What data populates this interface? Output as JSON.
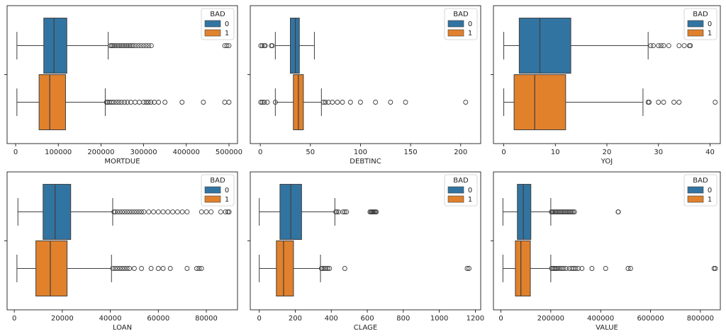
{
  "colors": {
    "bad0": "#3274a1",
    "bad1": "#e1812c",
    "frame": "#000000",
    "whisker": "#3f3f3f"
  },
  "legend": {
    "title": "BAD",
    "items": [
      "0",
      "1"
    ],
    "placement": "top-right"
  },
  "chart_data": [
    {
      "type": "box",
      "xlabel": "MORTDUE",
      "xlim": [
        -20000,
        520000
      ],
      "xticks": [
        0,
        100000,
        200000,
        300000,
        400000,
        500000
      ],
      "xtick_labels": [
        "0",
        "100000",
        "200000",
        "300000",
        "400000",
        "500000"
      ],
      "series": [
        {
          "name": "0",
          "whislo": 3000,
          "q1": 66000,
          "med": 90000,
          "q3": 120000,
          "whishi": 217000,
          "fliers": [
            222000,
            225000,
            228000,
            232000,
            236000,
            240000,
            244000,
            248000,
            252000,
            256000,
            260000,
            264000,
            268000,
            272000,
            276000,
            282000,
            288000,
            294000,
            300000,
            306000,
            312000,
            318000,
            490000,
            495000,
            500000
          ]
        },
        {
          "name": "1",
          "whislo": 3000,
          "q1": 55000,
          "med": 80000,
          "q3": 117000,
          "whishi": 210000,
          "fliers": [
            213000,
            216000,
            220000,
            225000,
            230000,
            236000,
            242000,
            248000,
            255000,
            262000,
            270000,
            280000,
            290000,
            300000,
            306000,
            311000,
            317000,
            325000,
            335000,
            350000,
            390000,
            440000,
            490000,
            500000
          ]
        }
      ]
    },
    {
      "type": "box",
      "xlabel": "DEBTINC",
      "xlim": [
        -10,
        220
      ],
      "xticks": [
        0,
        50,
        100,
        150,
        200
      ],
      "xtick_labels": [
        "0",
        "50",
        "100",
        "150",
        "200"
      ],
      "series": [
        {
          "name": "0",
          "whislo": 15,
          "q1": 30,
          "med": 35,
          "q3": 39,
          "whishi": 54,
          "fliers": [
            0.5,
            2,
            4,
            5,
            11,
            12
          ]
        },
        {
          "name": "1",
          "whislo": 15,
          "q1": 33,
          "med": 38,
          "q3": 43,
          "whishi": 61,
          "fliers": [
            0.5,
            2,
            4,
            7,
            15,
            63,
            65,
            68,
            72,
            77,
            82,
            90,
            100,
            115,
            130,
            145,
            205
          ]
        }
      ]
    },
    {
      "type": "box",
      "xlabel": "YOJ",
      "xlim": [
        -2,
        42
      ],
      "xticks": [
        0,
        10,
        20,
        30,
        40
      ],
      "xtick_labels": [
        "0",
        "10",
        "20",
        "30",
        "40"
      ],
      "series": [
        {
          "name": "0",
          "whislo": 0,
          "q1": 3,
          "med": 7,
          "q3": 13,
          "whishi": 28,
          "fliers": [
            28.5,
            29,
            30,
            30.5,
            31,
            32,
            34,
            35,
            36,
            36.2
          ]
        },
        {
          "name": "1",
          "whislo": 0,
          "q1": 2,
          "med": 6,
          "q3": 12,
          "whishi": 27,
          "fliers": [
            28,
            28.2,
            30,
            31,
            33,
            34,
            41
          ]
        }
      ]
    },
    {
      "type": "box",
      "xlabel": "LOAN",
      "xlim": [
        -3000,
        93000
      ],
      "xticks": [
        0,
        20000,
        40000,
        60000,
        80000
      ],
      "xtick_labels": [
        "0",
        "20000",
        "40000",
        "60000",
        "80000"
      ],
      "series": [
        {
          "name": "0",
          "whislo": 1500,
          "q1": 12000,
          "med": 17000,
          "q3": 23500,
          "whishi": 41000,
          "fliers": [
            41500,
            42000,
            43000,
            44000,
            45000,
            46000,
            47000,
            48000,
            49000,
            50000,
            51000,
            52000,
            53000,
            54000,
            56000,
            58000,
            60000,
            62000,
            64000,
            66000,
            68000,
            70000,
            72000,
            78000,
            80000,
            82000,
            86000,
            88000,
            89000,
            89500
          ]
        },
        {
          "name": "1",
          "whislo": 1100,
          "q1": 9000,
          "med": 15000,
          "q3": 22000,
          "whishi": 40500,
          "fliers": [
            41000,
            42000,
            43000,
            44000,
            45000,
            46000,
            47000,
            48000,
            50000,
            53000,
            57000,
            60000,
            62000,
            65000,
            72000,
            76000,
            77000,
            78000
          ]
        }
      ]
    },
    {
      "type": "box",
      "xlabel": "CLAGE",
      "xlim": [
        -50,
        1230
      ],
      "xticks": [
        0,
        200,
        400,
        600,
        800,
        1000,
        1200
      ],
      "xtick_labels": [
        "0",
        "200",
        "400",
        "600",
        "800",
        "1000",
        "1200"
      ],
      "series": [
        {
          "name": "0",
          "whislo": 0,
          "q1": 115,
          "med": 175,
          "q3": 235,
          "whishi": 420,
          "fliers": [
            425,
            430,
            440,
            465,
            475,
            485,
            615,
            620,
            625,
            630,
            635,
            640,
            645,
            650
          ]
        },
        {
          "name": "1",
          "whislo": 0,
          "q1": 95,
          "med": 135,
          "q3": 190,
          "whishi": 340,
          "fliers": [
            345,
            350,
            360,
            370,
            380,
            390,
            475,
            1155,
            1165
          ]
        }
      ]
    },
    {
      "type": "box",
      "xlabel": "VALUE",
      "xlim": [
        -30000,
        880000
      ],
      "xticks": [
        0,
        200000,
        400000,
        600000,
        800000
      ],
      "xtick_labels": [
        "0",
        "200000",
        "400000",
        "600000",
        "800000"
      ],
      "series": [
        {
          "name": "0",
          "whislo": 8000,
          "q1": 66000,
          "med": 90000,
          "q3": 120000,
          "whishi": 200000,
          "fliers": [
            202000,
            206000,
            210000,
            215000,
            220000,
            225000,
            230000,
            235000,
            240000,
            245000,
            250000,
            255000,
            260000,
            265000,
            270000,
            275000,
            280000,
            285000,
            290000,
            295000,
            470000,
            471000
          ]
        },
        {
          "name": "1",
          "whislo": 8000,
          "q1": 58000,
          "med": 80000,
          "q3": 118000,
          "whishi": 200000,
          "fliers": [
            203000,
            208000,
            213000,
            218000,
            224000,
            230000,
            237000,
            244000,
            252000,
            262000,
            275000,
            285000,
            292000,
            300000,
            310000,
            325000,
            365000,
            420000,
            510000,
            520000,
            855000,
            860000
          ]
        }
      ]
    }
  ]
}
